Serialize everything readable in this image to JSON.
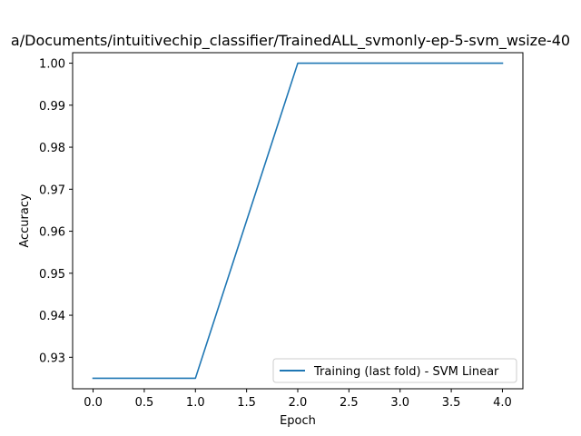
{
  "chart_data": {
    "type": "line",
    "title": "a/Documents/intuitivechip_classifier/TrainedALL_svmonly-ep-5-svm_wsize-40",
    "xlabel": "Epoch",
    "ylabel": "Accuracy",
    "xlim": [
      -0.2,
      4.2
    ],
    "ylim": [
      0.9225,
      1.0025
    ],
    "xticks": [
      0.0,
      0.5,
      1.0,
      1.5,
      2.0,
      2.5,
      3.0,
      3.5,
      4.0
    ],
    "xtick_labels": [
      "0.0",
      "0.5",
      "1.0",
      "1.5",
      "2.0",
      "2.5",
      "3.0",
      "3.5",
      "4.0"
    ],
    "yticks": [
      0.93,
      0.94,
      0.95,
      0.96,
      0.97,
      0.98,
      0.99,
      1.0
    ],
    "ytick_labels": [
      "0.93",
      "0.94",
      "0.95",
      "0.96",
      "0.97",
      "0.98",
      "0.99",
      "1.00"
    ],
    "grid": false,
    "legend_position": "lower-right",
    "series": [
      {
        "name": "Training (last fold) - SVM Linear",
        "color": "#1f77b4",
        "x": [
          0,
          1,
          2,
          3,
          4
        ],
        "y": [
          0.925,
          0.925,
          1.0,
          1.0,
          1.0
        ]
      }
    ]
  }
}
